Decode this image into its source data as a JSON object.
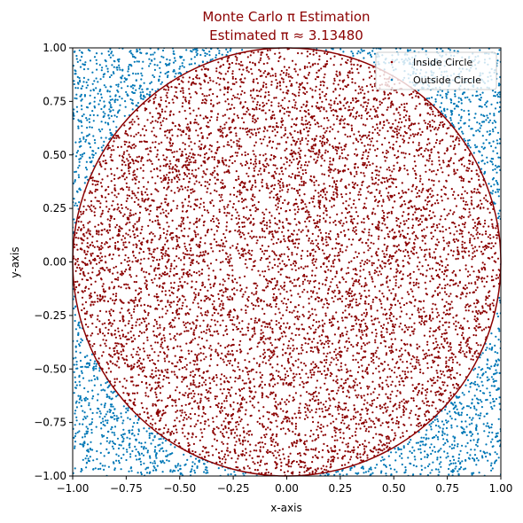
{
  "chart_data": {
    "type": "scatter",
    "title": "Monte Carlo π Estimation",
    "subtitle": "Estimated π ≈ 3.13480",
    "title_color": "#8b0000",
    "xlabel": "x-axis",
    "ylabel": "y-axis",
    "xlim": [
      -1.0,
      1.0
    ],
    "ylim": [
      -1.0,
      1.0
    ],
    "x_ticks": [
      -1.0,
      -0.75,
      -0.5,
      -0.25,
      0.0,
      0.25,
      0.5,
      0.75,
      1.0
    ],
    "x_tick_labels": [
      "−1.00",
      "−0.75",
      "−0.50",
      "−0.25",
      "0.00",
      "0.25",
      "0.50",
      "0.75",
      "1.00"
    ],
    "y_ticks": [
      -1.0,
      -0.75,
      -0.5,
      -0.25,
      0.0,
      0.25,
      0.5,
      0.75,
      1.0
    ],
    "y_tick_labels": [
      "−1.00",
      "−0.75",
      "−0.50",
      "−0.25",
      "0.00",
      "0.25",
      "0.50",
      "0.75",
      "1.00"
    ],
    "grid": false,
    "legend_position": "top-right",
    "series": [
      {
        "name": "Inside Circle",
        "color": "#8b0000",
        "region": "x² + y² ≤ 1"
      },
      {
        "name": "Outside Circle",
        "color": "#0077b6",
        "region": "x² + y² > 1"
      }
    ],
    "reference_shape": {
      "type": "circle",
      "center": [
        0,
        0
      ],
      "radius": 1,
      "color": "#8b0000"
    }
  }
}
